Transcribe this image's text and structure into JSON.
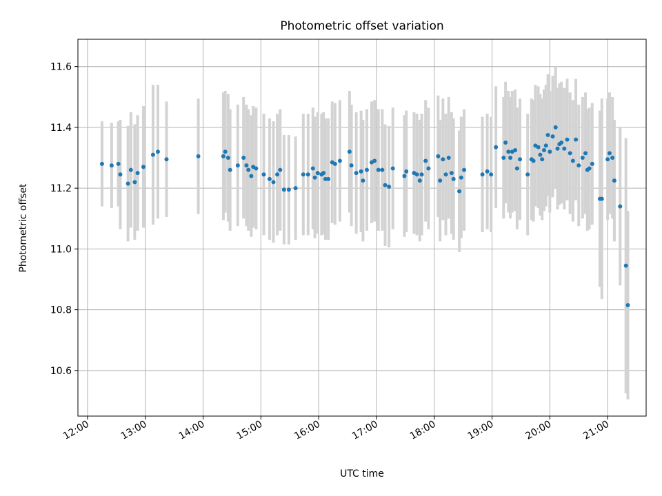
{
  "chart_data": {
    "type": "scatter",
    "title": "Photometric offset variation",
    "xlabel": "UTC time",
    "ylabel": "Photometric offset",
    "x_unit": "hours UTC",
    "xlim": [
      "11:50",
      "21:40"
    ],
    "ylim": [
      10.45,
      11.69
    ],
    "x_ticks": [
      "12:00",
      "13:00",
      "14:00",
      "15:00",
      "16:00",
      "17:00",
      "18:00",
      "19:00",
      "20:00",
      "21:00"
    ],
    "y_ticks": [
      10.6,
      10.8,
      11.0,
      11.2,
      11.4,
      11.6
    ],
    "y_tick_labels": [
      "10.6",
      "10.8",
      "11.0",
      "11.2",
      "11.4",
      "11.6"
    ],
    "grid": true,
    "legend": "none",
    "colors": {
      "point": "#1f77b4",
      "errorbar": "#d3d3d3",
      "grid": "#b0b0b0"
    },
    "series": [
      {
        "points": [
          [
            "12:15",
            11.28,
            0.14
          ],
          [
            "12:25",
            11.275,
            0.14
          ],
          [
            "12:32",
            11.28,
            0.14
          ],
          [
            "12:34",
            11.245,
            0.18
          ],
          [
            "12:42",
            11.215,
            0.19
          ],
          [
            "12:45",
            11.26,
            0.19
          ],
          [
            "12:49",
            11.22,
            0.19
          ],
          [
            "12:52",
            11.25,
            0.19
          ],
          [
            "12:58",
            11.27,
            0.2
          ],
          [
            "13:08",
            11.31,
            0.23
          ],
          [
            "13:13",
            11.32,
            0.22
          ],
          [
            "13:22",
            11.295,
            0.19
          ],
          [
            "13:55",
            11.305,
            0.19
          ],
          [
            "14:21",
            11.305,
            0.21
          ],
          [
            "14:23",
            11.32,
            0.2
          ],
          [
            "14:26",
            11.3,
            0.21
          ],
          [
            "14:28",
            11.26,
            0.2
          ],
          [
            "14:36",
            11.275,
            0.2
          ],
          [
            "14:42",
            11.3,
            0.2
          ],
          [
            "14:45",
            11.275,
            0.2
          ],
          [
            "14:47",
            11.26,
            0.2
          ],
          [
            "14:50",
            11.24,
            0.2
          ],
          [
            "14:52",
            11.27,
            0.2
          ],
          [
            "14:55",
            11.265,
            0.2
          ],
          [
            "15:03",
            11.245,
            0.2
          ],
          [
            "15:09",
            11.23,
            0.2
          ],
          [
            "15:13",
            11.22,
            0.2
          ],
          [
            "15:17",
            11.245,
            0.2
          ],
          [
            "15:20",
            11.26,
            0.2
          ],
          [
            "15:24",
            11.195,
            0.18
          ],
          [
            "15:29",
            11.195,
            0.18
          ],
          [
            "15:36",
            11.2,
            0.17
          ],
          [
            "15:44",
            11.245,
            0.2
          ],
          [
            "15:49",
            11.245,
            0.2
          ],
          [
            "15:54",
            11.265,
            0.2
          ],
          [
            "15:56",
            11.235,
            0.2
          ],
          [
            "15:59",
            11.25,
            0.2
          ],
          [
            "16:03",
            11.245,
            0.2
          ],
          [
            "16:05",
            11.25,
            0.2
          ],
          [
            "16:07",
            11.23,
            0.2
          ],
          [
            "16:10",
            11.23,
            0.2
          ],
          [
            "16:14",
            11.285,
            0.2
          ],
          [
            "16:17",
            11.28,
            0.2
          ],
          [
            "16:22",
            11.29,
            0.2
          ],
          [
            "16:32",
            11.32,
            0.2
          ],
          [
            "16:34",
            11.275,
            0.2
          ],
          [
            "16:39",
            11.25,
            0.2
          ],
          [
            "16:44",
            11.255,
            0.2
          ],
          [
            "16:46",
            11.225,
            0.2
          ],
          [
            "16:50",
            11.26,
            0.2
          ],
          [
            "16:55",
            11.285,
            0.2
          ],
          [
            "16:58",
            11.29,
            0.2
          ],
          [
            "17:02",
            11.26,
            0.2
          ],
          [
            "17:06",
            11.26,
            0.2
          ],
          [
            "17:09",
            11.21,
            0.2
          ],
          [
            "17:13",
            11.205,
            0.2
          ],
          [
            "17:17",
            11.265,
            0.2
          ],
          [
            "17:29",
            11.24,
            0.2
          ],
          [
            "17:31",
            11.255,
            0.2
          ],
          [
            "17:39",
            11.25,
            0.2
          ],
          [
            "17:42",
            11.245,
            0.2
          ],
          [
            "17:45",
            11.225,
            0.2
          ],
          [
            "17:47",
            11.245,
            0.2
          ],
          [
            "17:51",
            11.29,
            0.2
          ],
          [
            "17:54",
            11.265,
            0.2
          ],
          [
            "18:04",
            11.305,
            0.2
          ],
          [
            "18:06",
            11.225,
            0.2
          ],
          [
            "18:09",
            11.295,
            0.2
          ],
          [
            "18:12",
            11.245,
            0.2
          ],
          [
            "18:15",
            11.3,
            0.2
          ],
          [
            "18:18",
            11.25,
            0.2
          ],
          [
            "18:20",
            11.23,
            0.2
          ],
          [
            "18:26",
            11.19,
            0.2
          ],
          [
            "18:28",
            11.235,
            0.2
          ],
          [
            "18:31",
            11.26,
            0.2
          ],
          [
            "18:50",
            11.245,
            0.19
          ],
          [
            "18:55",
            11.255,
            0.19
          ],
          [
            "18:59",
            11.245,
            0.19
          ],
          [
            "19:04",
            11.335,
            0.2
          ],
          [
            "19:12",
            11.3,
            0.2
          ],
          [
            "19:14",
            11.35,
            0.2
          ],
          [
            "19:17",
            11.32,
            0.2
          ],
          [
            "19:19",
            11.3,
            0.2
          ],
          [
            "19:21",
            11.32,
            0.2
          ],
          [
            "19:24",
            11.325,
            0.2
          ],
          [
            "19:26",
            11.265,
            0.2
          ],
          [
            "19:29",
            11.295,
            0.2
          ],
          [
            "19:37",
            11.245,
            0.2
          ],
          [
            "19:41",
            11.295,
            0.2
          ],
          [
            "19:43",
            11.29,
            0.2
          ],
          [
            "19:45",
            11.34,
            0.2
          ],
          [
            "19:48",
            11.335,
            0.2
          ],
          [
            "19:50",
            11.31,
            0.2
          ],
          [
            "19:52",
            11.295,
            0.2
          ],
          [
            "19:54",
            11.325,
            0.2
          ],
          [
            "19:56",
            11.34,
            0.2
          ],
          [
            "19:58",
            11.375,
            0.2
          ],
          [
            "20:00",
            11.32,
            0.2
          ],
          [
            "20:03",
            11.37,
            0.2
          ],
          [
            "20:06",
            11.4,
            0.2
          ],
          [
            "20:08",
            11.33,
            0.2
          ],
          [
            "20:10",
            11.345,
            0.2
          ],
          [
            "20:12",
            11.35,
            0.2
          ],
          [
            "20:15",
            11.33,
            0.2
          ],
          [
            "20:18",
            11.36,
            0.2
          ],
          [
            "20:21",
            11.315,
            0.2
          ],
          [
            "20:24",
            11.29,
            0.2
          ],
          [
            "20:27",
            11.36,
            0.2
          ],
          [
            "20:30",
            11.275,
            0.2
          ],
          [
            "20:34",
            11.3,
            0.2
          ],
          [
            "20:37",
            11.315,
            0.2
          ],
          [
            "20:39",
            11.26,
            0.2
          ],
          [
            "20:41",
            11.265,
            0.2
          ],
          [
            "20:44",
            11.28,
            0.2
          ],
          [
            "20:52",
            11.165,
            0.29
          ],
          [
            "20:54",
            11.165,
            0.33
          ],
          [
            "21:00",
            11.295,
            0.2
          ],
          [
            "21:02",
            11.315,
            0.2
          ],
          [
            "21:05",
            11.3,
            0.2
          ],
          [
            "21:07",
            11.225,
            0.2
          ],
          [
            "21:13",
            11.14,
            0.26
          ],
          [
            "21:19",
            10.945,
            0.42
          ],
          [
            "21:21",
            10.815,
            0.31
          ]
        ]
      }
    ]
  }
}
